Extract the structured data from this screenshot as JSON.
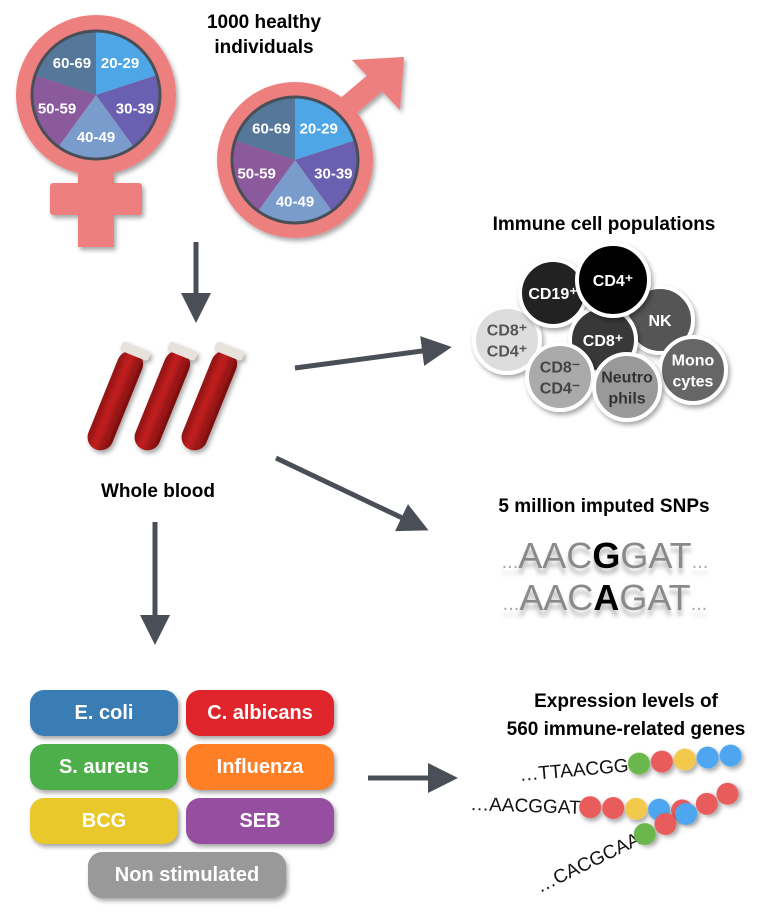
{
  "title": [
    "1000 healthy",
    "individuals"
  ],
  "age_groups": [
    {
      "label": "20-29",
      "color": "#4ea6e6"
    },
    {
      "label": "30-39",
      "color": "#6a5fb0"
    },
    {
      "label": "40-49",
      "color": "#7a9ccc"
    },
    {
      "label": "50-59",
      "color": "#8b5a9c"
    },
    {
      "label": "60-69",
      "color": "#557799"
    }
  ],
  "symbol_color": "#ee7f7f",
  "whole_blood": "Whole blood",
  "immune": {
    "title": "Immune cell populations",
    "cells": [
      {
        "lines": [
          "CD8⁺",
          "CD4⁺"
        ],
        "color": "#dddddd",
        "text": "#555555"
      },
      {
        "lines": [
          "CD19⁺"
        ],
        "color": "#222222",
        "text": "#ffffff"
      },
      {
        "lines": [
          "NK"
        ],
        "color": "#555555",
        "text": "#ffffff"
      },
      {
        "lines": [
          "CD8⁺"
        ],
        "color": "#383838",
        "text": "#ffffff"
      },
      {
        "lines": [
          "CD4⁺"
        ],
        "color": "#000000",
        "text": "#ffffff"
      },
      {
        "lines": [
          "CD8⁻",
          "CD4⁻"
        ],
        "color": "#aaaaaa",
        "text": "#444444"
      },
      {
        "lines": [
          "Mono",
          "cytes"
        ],
        "color": "#666666",
        "text": "#ffffff"
      },
      {
        "lines": [
          "Neutro",
          "phils"
        ],
        "color": "#999999",
        "text": "#333333"
      }
    ]
  },
  "snps": {
    "title": "5 million imputed SNPs",
    "seq1": {
      "pre": "...",
      "a": "AAC",
      "snp": "G",
      "b": "GAT",
      "post": "..."
    },
    "seq2": {
      "pre": "...",
      "a": "AAC",
      "snp": "A",
      "b": "GAT",
      "post": "..."
    }
  },
  "stimuli": [
    {
      "label": "E. coli",
      "color": "#3a7db5"
    },
    {
      "label": "C. albicans",
      "color": "#e0242b"
    },
    {
      "label": "S. aureus",
      "color": "#4daf4a"
    },
    {
      "label": "Influenza",
      "color": "#ff7f27"
    },
    {
      "label": "BCG",
      "color": "#e8c82a"
    },
    {
      "label": "SEB",
      "color": "#954ea0"
    },
    {
      "label": "Non stimulated",
      "color": "#999999"
    }
  ],
  "expression": {
    "title": [
      "Expression levels of",
      "560 immune-related genes"
    ],
    "rows": [
      {
        "seq": "…TTAACGG",
        "beads": [
          "#6ab84b",
          "#e85b5b",
          "#f2c94c",
          "#4ea6ef",
          "#4ea6ef"
        ]
      },
      {
        "seq": "…AACGGAT",
        "beads": [
          "#e85b5b",
          "#e85b5b",
          "#f2c94c",
          "#4ea6ef",
          "#e85b5b"
        ]
      },
      {
        "seq": "…CACGCAA",
        "beads": [
          "#6ab84b",
          "#e85b5b",
          "#4ea6ef",
          "#e85b5b",
          "#e85b5b"
        ]
      }
    ]
  }
}
